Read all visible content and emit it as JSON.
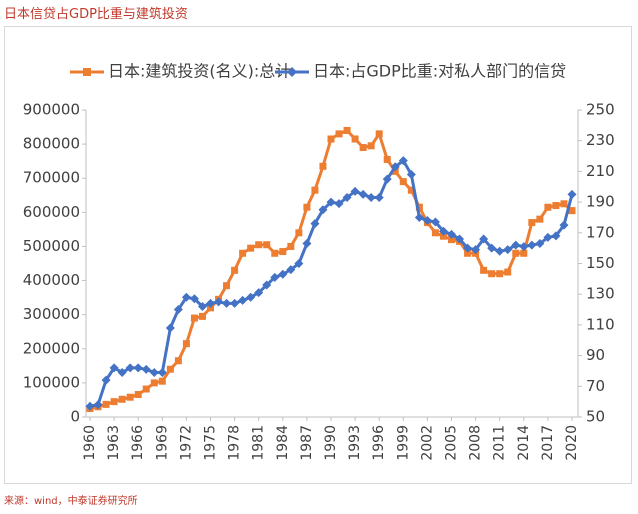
{
  "header": {
    "title": "日本信贷占GDP比重与建筑投资"
  },
  "footer": {
    "source": "来源：wind，中泰证券研究所"
  },
  "chart_data": {
    "type": "line",
    "x": [
      1960,
      1961,
      1962,
      1963,
      1964,
      1965,
      1966,
      1967,
      1968,
      1969,
      1970,
      1971,
      1972,
      1973,
      1974,
      1975,
      1976,
      1977,
      1978,
      1979,
      1980,
      1981,
      1982,
      1983,
      1984,
      1985,
      1986,
      1987,
      1988,
      1989,
      1990,
      1991,
      1992,
      1993,
      1994,
      1995,
      1996,
      1997,
      1998,
      1999,
      2000,
      2001,
      2002,
      2003,
      2004,
      2005,
      2006,
      2007,
      2008,
      2009,
      2010,
      2011,
      2012,
      2013,
      2014,
      2015,
      2016,
      2017,
      2018,
      2019,
      2020
    ],
    "xlim": [
      1960,
      2020
    ],
    "xticks": [
      1960,
      1963,
      1966,
      1969,
      1972,
      1975,
      1978,
      1981,
      1984,
      1987,
      1990,
      1993,
      1996,
      1999,
      2002,
      2005,
      2008,
      2011,
      2014,
      2017,
      2020
    ],
    "ylim": [
      0,
      900000
    ],
    "yticks": [
      0,
      100000,
      200000,
      300000,
      400000,
      500000,
      600000,
      700000,
      800000,
      900000
    ],
    "y2lim": [
      50,
      250
    ],
    "y2ticks": [
      50,
      70,
      90,
      110,
      130,
      150,
      170,
      190,
      210,
      230,
      250
    ],
    "legend": "top",
    "series": [
      {
        "name": "日本:建筑投资(名义):总计",
        "color": "#ed7d31",
        "marker": "square",
        "values": [
          25000,
          30000,
          37000,
          45000,
          52000,
          58000,
          66000,
          82000,
          100000,
          105000,
          140000,
          165000,
          215000,
          290000,
          295000,
          320000,
          345000,
          385000,
          430000,
          480000,
          495000,
          505000,
          505000,
          480000,
          485000,
          500000,
          540000,
          615000,
          665000,
          735000,
          815000,
          830000,
          840000,
          815000,
          790000,
          795000,
          830000,
          755000,
          720000,
          690000,
          665000,
          615000,
          570000,
          540000,
          530000,
          520000,
          515000,
          480000,
          480000,
          430000,
          420000,
          420000,
          425000,
          480000,
          480000,
          570000,
          580000,
          615000,
          620000,
          625000,
          605000
        ]
      },
      {
        "name": "日本:占GDP比重:对私人部门的信贷",
        "color": "#4472c4",
        "marker": "diamond",
        "axis": "y2",
        "values": [
          57,
          58,
          74,
          82,
          79,
          82,
          82,
          81,
          79,
          79,
          108,
          120,
          128,
          127,
          122,
          124,
          125,
          124,
          124,
          126,
          128,
          131,
          136,
          141,
          143,
          146,
          150,
          163,
          176,
          185,
          190,
          189,
          193,
          197,
          195,
          193,
          193,
          205,
          213,
          217,
          208,
          180,
          178,
          177,
          171,
          169,
          166,
          160,
          159,
          166,
          160,
          158,
          159,
          162,
          161,
          162,
          163,
          167,
          168,
          175,
          195
        ]
      }
    ]
  }
}
